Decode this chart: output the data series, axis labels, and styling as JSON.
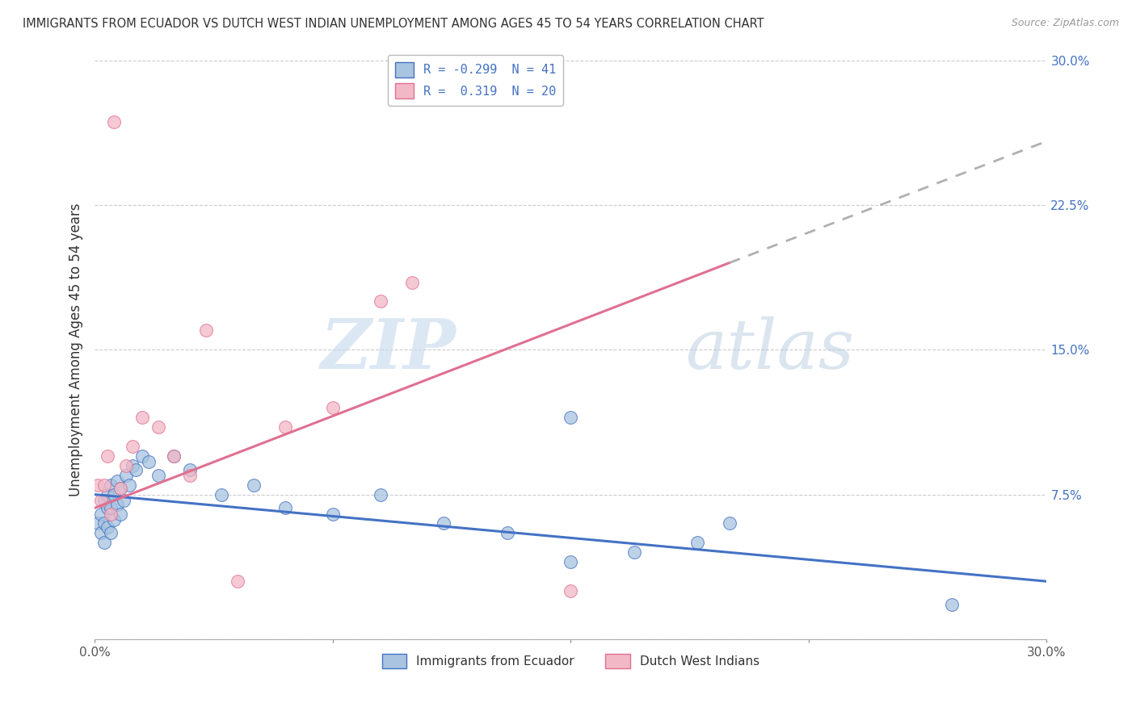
{
  "title": "IMMIGRANTS FROM ECUADOR VS DUTCH WEST INDIAN UNEMPLOYMENT AMONG AGES 45 TO 54 YEARS CORRELATION CHART",
  "source": "Source: ZipAtlas.com",
  "ylabel": "Unemployment Among Ages 45 to 54 years",
  "legend_label1": "Immigrants from Ecuador",
  "legend_label2": "Dutch West Indians",
  "r1": "-0.299",
  "n1": "41",
  "r2": "0.319",
  "n2": "20",
  "xlim": [
    0,
    0.3
  ],
  "ylim": [
    0,
    0.3
  ],
  "xticks": [
    0.0,
    0.075,
    0.15,
    0.225,
    0.3
  ],
  "xticklabels": [
    "0.0%",
    "",
    "",
    "",
    "30.0%"
  ],
  "yticks": [
    0.0,
    0.075,
    0.15,
    0.225,
    0.3
  ],
  "yticklabels_right": [
    "",
    "7.5%",
    "15.0%",
    "22.5%",
    "30.0%"
  ],
  "color_blue": "#a8c4e0",
  "color_pink": "#f2b8c6",
  "trendline_blue": "#4472c4",
  "trendline_pink": "#e07090",
  "trendline_gray": "#b0b0b0",
  "background": "#ffffff",
  "watermark_zip": "ZIP",
  "watermark_atlas": "atlas",
  "blue_scatter_x": [
    0.001,
    0.002,
    0.002,
    0.003,
    0.003,
    0.003,
    0.004,
    0.004,
    0.004,
    0.005,
    0.005,
    0.005,
    0.006,
    0.006,
    0.007,
    0.007,
    0.008,
    0.008,
    0.009,
    0.01,
    0.011,
    0.012,
    0.013,
    0.015,
    0.017,
    0.02,
    0.025,
    0.03,
    0.04,
    0.05,
    0.06,
    0.075,
    0.09,
    0.11,
    0.13,
    0.15,
    0.17,
    0.19,
    0.15,
    0.2,
    0.27
  ],
  "blue_scatter_y": [
    0.06,
    0.065,
    0.055,
    0.072,
    0.06,
    0.05,
    0.068,
    0.075,
    0.058,
    0.08,
    0.068,
    0.055,
    0.075,
    0.062,
    0.082,
    0.07,
    0.078,
    0.065,
    0.072,
    0.085,
    0.08,
    0.09,
    0.088,
    0.095,
    0.092,
    0.085,
    0.095,
    0.088,
    0.075,
    0.08,
    0.068,
    0.065,
    0.075,
    0.06,
    0.055,
    0.04,
    0.045,
    0.05,
    0.115,
    0.06,
    0.018
  ],
  "pink_scatter_x": [
    0.001,
    0.002,
    0.003,
    0.004,
    0.005,
    0.006,
    0.008,
    0.01,
    0.012,
    0.015,
    0.02,
    0.025,
    0.035,
    0.06,
    0.075,
    0.1,
    0.09,
    0.03,
    0.045,
    0.15
  ],
  "pink_scatter_y": [
    0.08,
    0.072,
    0.08,
    0.095,
    0.065,
    0.268,
    0.078,
    0.09,
    0.1,
    0.115,
    0.11,
    0.095,
    0.16,
    0.11,
    0.12,
    0.185,
    0.175,
    0.085,
    0.03,
    0.025
  ],
  "blue_trend_x0": 0.0,
  "blue_trend_y0": 0.075,
  "blue_trend_x1": 0.3,
  "blue_trend_y1": 0.03,
  "pink_trend_x0": 0.0,
  "pink_trend_y0": 0.068,
  "pink_trend_x1": 0.2,
  "pink_trend_y1": 0.195,
  "pink_trend_dash_x1": 0.3,
  "pink_trend_dash_y1": 0.258
}
